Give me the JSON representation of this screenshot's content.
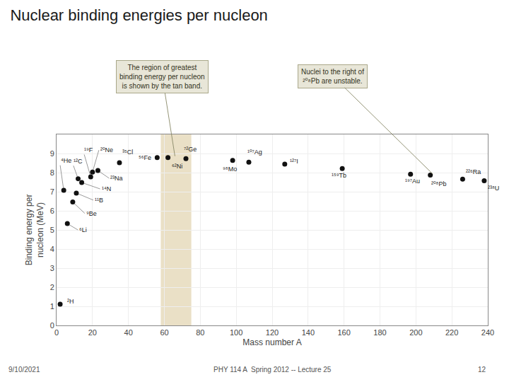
{
  "chart_data": {
    "type": "scatter",
    "title": "Nuclear binding energies per nucleon",
    "x_label": "Mass number A",
    "y_label": "Binding energy per\nnucleon (MeV)",
    "x": [
      2,
      4,
      6,
      9,
      11,
      12,
      14,
      19,
      20,
      23,
      35,
      56,
      62,
      72,
      98,
      107,
      127,
      159,
      197,
      208,
      226,
      238
    ],
    "values": [
      1.11,
      7.07,
      5.33,
      6.46,
      6.93,
      7.68,
      7.48,
      7.78,
      8.03,
      8.11,
      8.52,
      8.79,
      8.79,
      8.73,
      8.64,
      8.55,
      8.44,
      8.21,
      7.92,
      7.87,
      7.66,
      7.57
    ],
    "labels": [
      "²H",
      "⁴He",
      "⁶Li",
      "⁹Be",
      "¹¹B",
      "¹²C",
      "¹⁴N",
      "¹⁹F",
      "²⁰Ne",
      "²³Na",
      "³⁵Cl",
      "⁵⁶Fe",
      "⁶²Ni",
      "⁷²Ge",
      "⁹⁸Mo",
      "¹⁰⁷Ag",
      "¹²⁷I",
      "¹⁵⁹Tb",
      "¹⁹⁷Au",
      "²⁰⁸Pb",
      "²²⁶Ra",
      "²³⁸U"
    ],
    "color": "#111111",
    "xlim": [
      0,
      240
    ],
    "ylim": [
      0,
      10
    ],
    "xticks": [
      0,
      20,
      40,
      60,
      80,
      100,
      120,
      140,
      160,
      180,
      200,
      220,
      240
    ],
    "yticks": [
      0,
      1,
      2,
      3,
      4,
      5,
      6,
      7,
      8,
      9
    ],
    "grid": true,
    "band_x": [
      58,
      75
    ],
    "band_color": "#dfd0a8",
    "annotations": [
      {
        "text": "The region of greatest\nbinding energy per nucleon\nis shown by the tan band.",
        "x": 66,
        "y": 8.79
      },
      {
        "text": "Nuclei to the right of\n²⁰⁸Pb are unstable.",
        "x": 210,
        "y": 7.87
      }
    ],
    "footer": [
      "9/10/2021",
      "PHY 114 A  Spring 2012 -- Lecture 25",
      "12"
    ]
  }
}
